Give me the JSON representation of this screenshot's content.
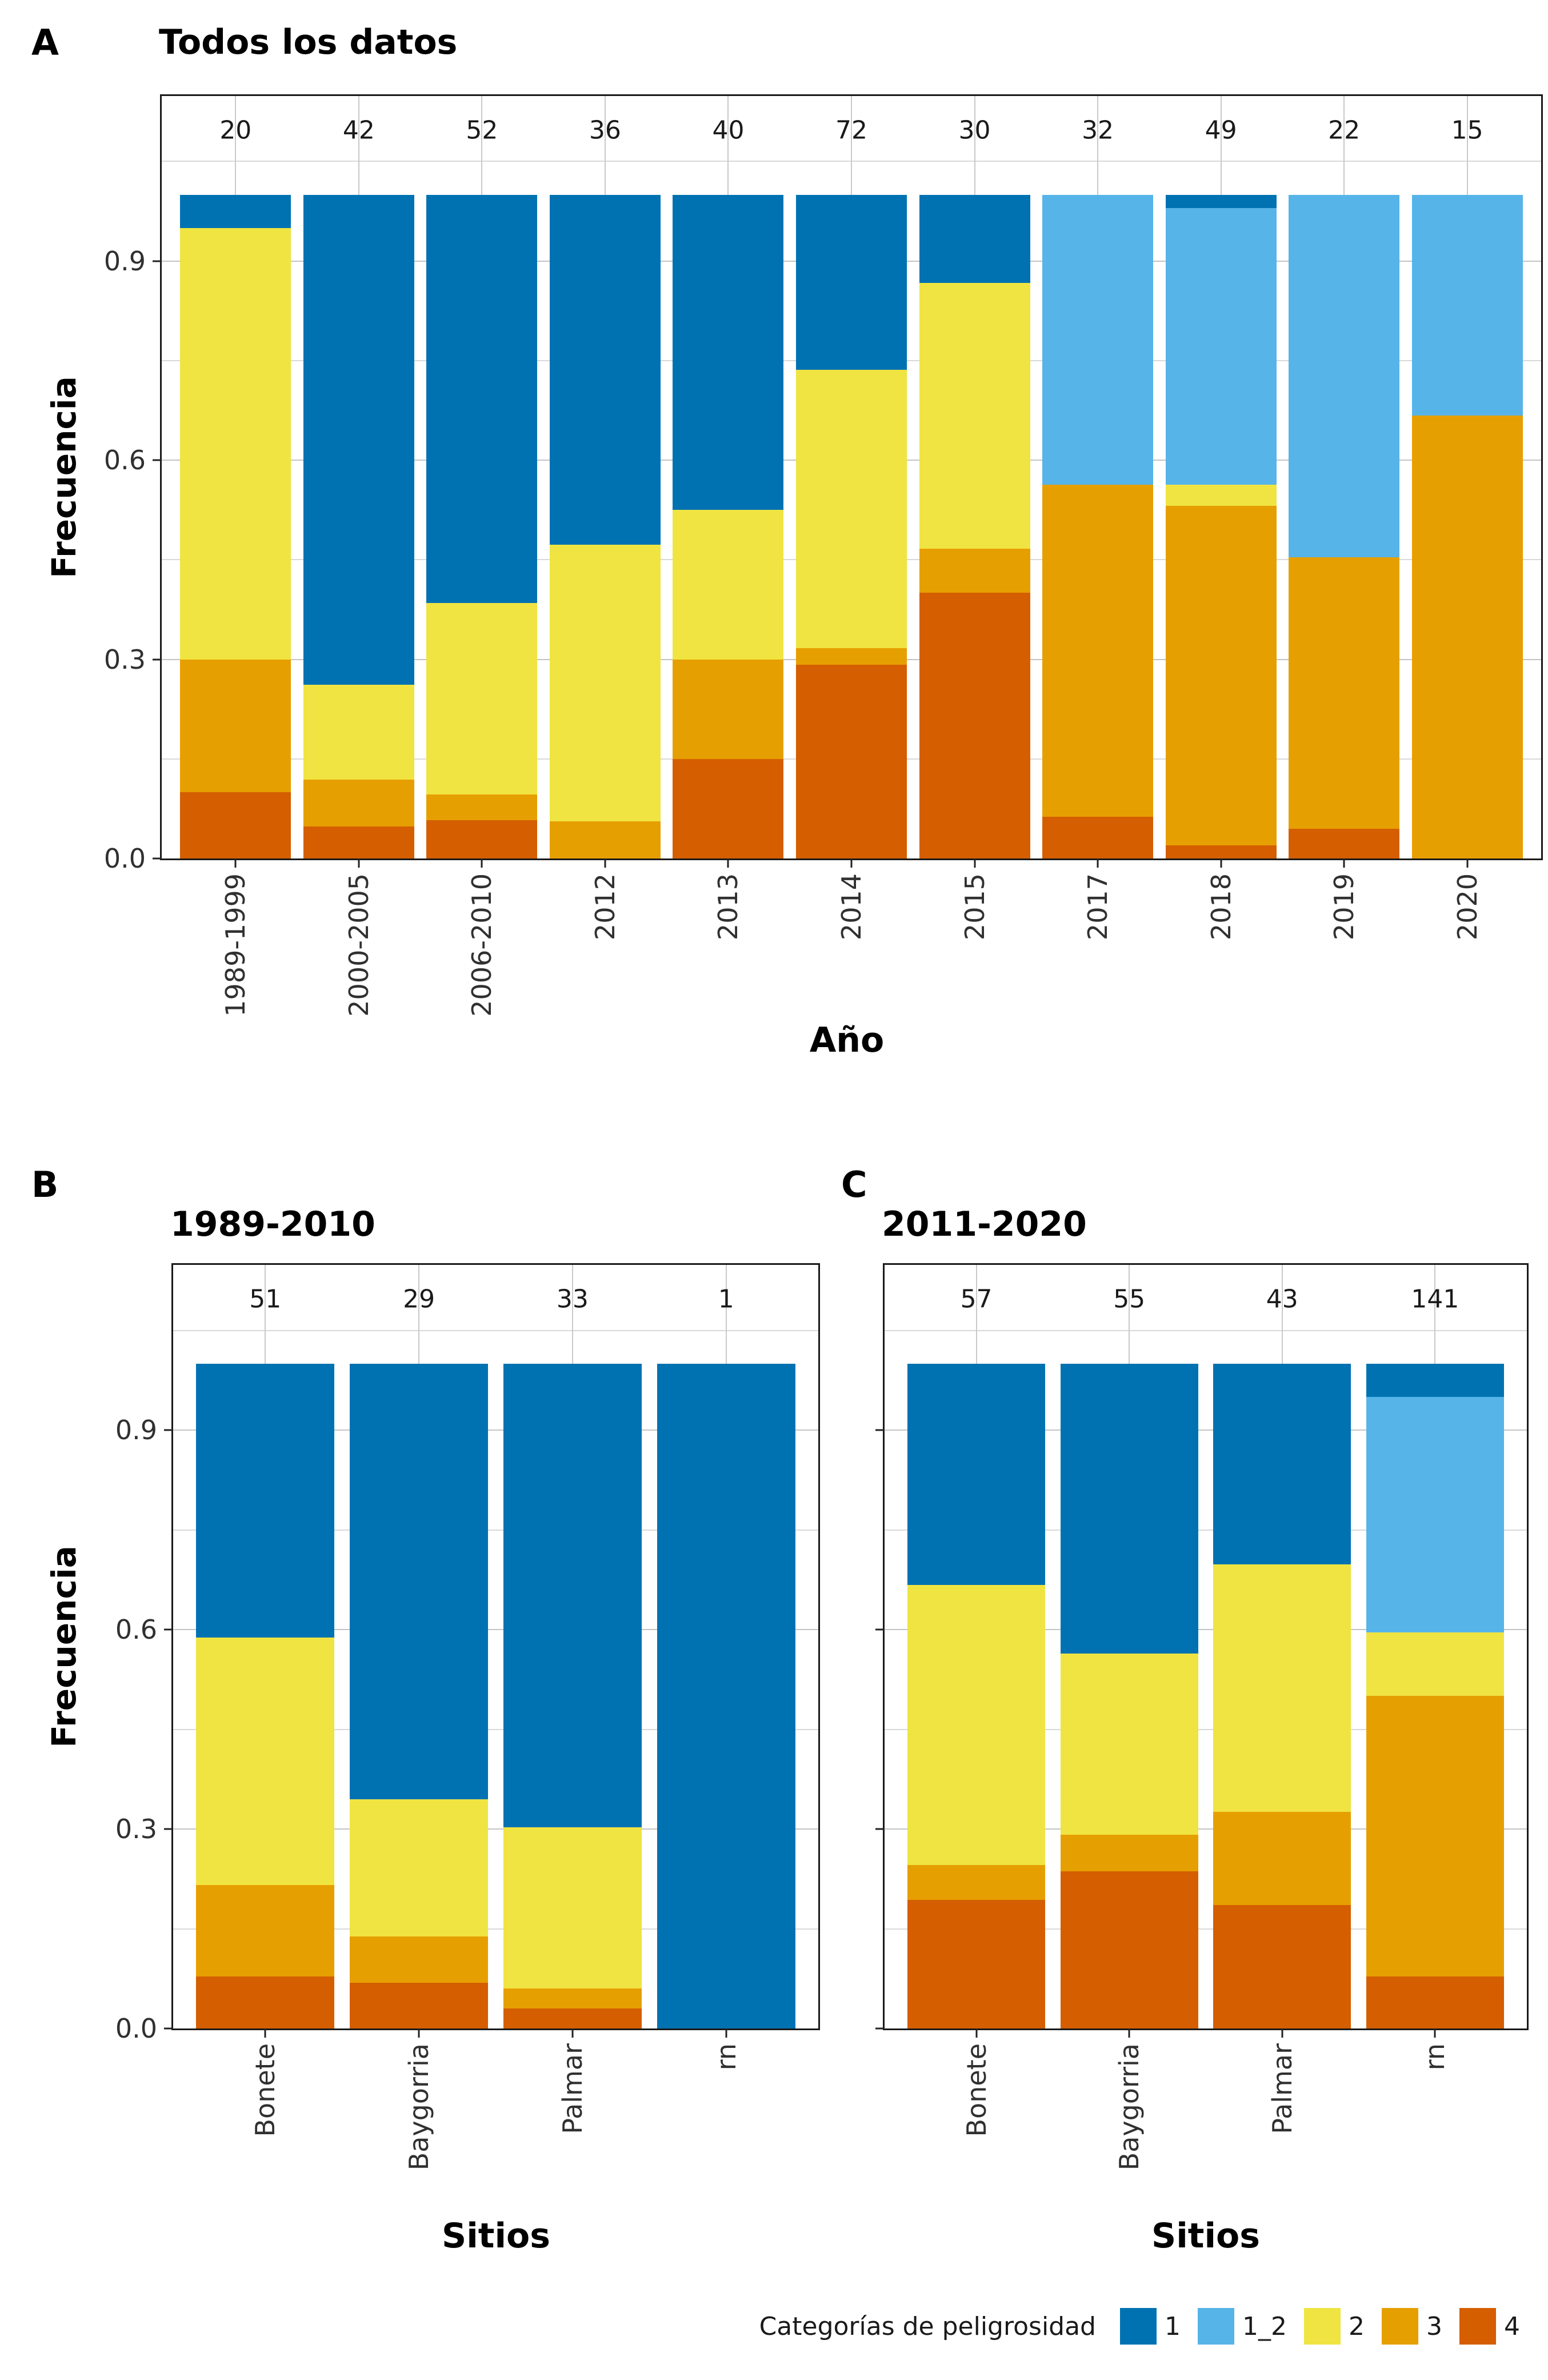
{
  "figure": {
    "panels": {
      "a": {
        "tag": "A",
        "title": "Todos los datos",
        "xlabel": "Año",
        "ylabel": "Frecuencia"
      },
      "b": {
        "tag": "B",
        "title": "1989-2010",
        "xlabel": "Sitios",
        "ylabel": "Frecuencia"
      },
      "c": {
        "tag": "C",
        "title": "2011-2020",
        "xlabel": "Sitios"
      }
    },
    "legend": {
      "title": "Categorías de peligrosidad",
      "items": [
        {
          "label": "1",
          "color": "#0072B2"
        },
        {
          "label": "1_2",
          "color": "#56B4E9"
        },
        {
          "label": "2",
          "color": "#F0E442"
        },
        {
          "label": "3",
          "color": "#E69F00"
        },
        {
          "label": "4",
          "color": "#D55E00"
        }
      ]
    },
    "colors": {
      "category_1": "#0072B2",
      "category_1_2": "#56B4E9",
      "category_2": "#F0E442",
      "category_3": "#E69F00",
      "category_4": "#D55E00",
      "grid_major": "#c4c4c4",
      "grid_minor": "#d9d9d9",
      "panel_border": "#1a1a1a"
    }
  },
  "chart_data": [
    {
      "id": "a",
      "type": "bar",
      "stacked": true,
      "title": "Todos los datos",
      "xlabel": "Año",
      "ylabel": "Frecuencia",
      "ylim": [
        0,
        1
      ],
      "yticks": [
        0,
        0.3,
        0.6,
        0.9
      ],
      "grid": true,
      "categories": [
        "1989-1999",
        "2000-2005",
        "2006-2010",
        "2012",
        "2013",
        "2014",
        "2015",
        "2017",
        "2018",
        "2019",
        "2020"
      ],
      "counts": [
        20,
        42,
        52,
        36,
        40,
        72,
        30,
        32,
        49,
        22,
        15
      ],
      "series": [
        {
          "name": "4",
          "color": "#D55E00",
          "values": [
            0.1,
            0.048,
            0.058,
            0.0,
            0.15,
            0.292,
            0.4,
            0.063,
            0.02,
            0.045,
            0.0
          ]
        },
        {
          "name": "3",
          "color": "#E69F00",
          "values": [
            0.2,
            0.071,
            0.038,
            0.056,
            0.15,
            0.025,
            0.067,
            0.5,
            0.511,
            0.409,
            0.667
          ]
        },
        {
          "name": "2",
          "color": "#F0E442",
          "values": [
            0.65,
            0.143,
            0.289,
            0.417,
            0.225,
            0.419,
            0.4,
            0.0,
            0.032,
            0.0,
            0.0
          ]
        },
        {
          "name": "1_2",
          "color": "#56B4E9",
          "values": [
            0.0,
            0.0,
            0.0,
            0.0,
            0.0,
            0.0,
            0.0,
            0.437,
            0.417,
            0.546,
            0.333
          ]
        },
        {
          "name": "1",
          "color": "#0072B2",
          "values": [
            0.05,
            0.738,
            0.615,
            0.527,
            0.475,
            0.264,
            0.133,
            0.0,
            0.02,
            0.0,
            0.0
          ]
        }
      ]
    },
    {
      "id": "b",
      "type": "bar",
      "stacked": true,
      "title": "1989-2010",
      "xlabel": "Sitios",
      "ylabel": "Frecuencia",
      "ylim": [
        0,
        1
      ],
      "yticks": [
        0,
        0.3,
        0.6,
        0.9
      ],
      "grid": true,
      "categories": [
        "Bonete",
        "Baygorria",
        "Palmar",
        "rn"
      ],
      "counts": [
        51,
        29,
        33,
        1
      ],
      "series": [
        {
          "name": "4",
          "color": "#D55E00",
          "values": [
            0.078,
            0.069,
            0.03,
            0.0
          ]
        },
        {
          "name": "3",
          "color": "#E69F00",
          "values": [
            0.138,
            0.069,
            0.03,
            0.0
          ]
        },
        {
          "name": "2",
          "color": "#F0E442",
          "values": [
            0.372,
            0.207,
            0.243,
            0.0
          ]
        },
        {
          "name": "1_2",
          "color": "#56B4E9",
          "values": [
            0.0,
            0.0,
            0.0,
            0.0
          ]
        },
        {
          "name": "1",
          "color": "#0072B2",
          "values": [
            0.412,
            0.655,
            0.697,
            1.0
          ]
        }
      ]
    },
    {
      "id": "c",
      "type": "bar",
      "stacked": true,
      "title": "2011-2020",
      "xlabel": "Sitios",
      "ylim": [
        0,
        1
      ],
      "yticks": [
        0,
        0.3,
        0.6,
        0.9
      ],
      "grid": true,
      "categories": [
        "Bonete",
        "Baygorria",
        "Palmar",
        "rn"
      ],
      "counts": [
        57,
        55,
        43,
        141
      ],
      "series": [
        {
          "name": "4",
          "color": "#D55E00",
          "values": [
            0.193,
            0.236,
            0.186,
            0.078
          ]
        },
        {
          "name": "3",
          "color": "#E69F00",
          "values": [
            0.053,
            0.055,
            0.14,
            0.422
          ]
        },
        {
          "name": "2",
          "color": "#F0E442",
          "values": [
            0.421,
            0.273,
            0.372,
            0.096
          ]
        },
        {
          "name": "1_2",
          "color": "#56B4E9",
          "values": [
            0.0,
            0.0,
            0.0,
            0.354
          ]
        },
        {
          "name": "1",
          "color": "#0072B2",
          "values": [
            0.333,
            0.436,
            0.302,
            0.05
          ]
        }
      ]
    }
  ]
}
